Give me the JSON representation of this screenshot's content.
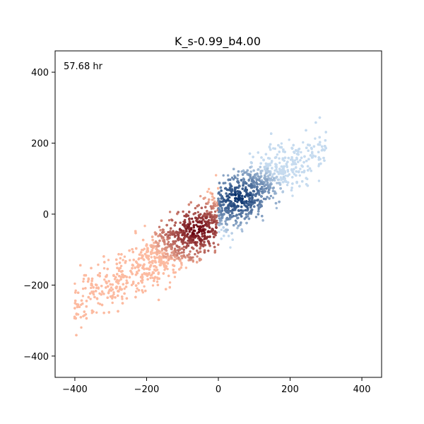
{
  "chart_data": {
    "type": "scatter",
    "title": "K_s-0.99_b4.00",
    "annotation": "57.68 hr",
    "xlabel": "",
    "ylabel": "",
    "xlim": [
      -455,
      455
    ],
    "ylim": [
      -460,
      460
    ],
    "xticks": [
      -400,
      -200,
      0,
      200,
      400
    ],
    "yticks": [
      -400,
      -200,
      0,
      200,
      400
    ],
    "xtick_labels": [
      "−400",
      "−200",
      "0",
      "200",
      "400"
    ],
    "ytick_labels": [
      "−400",
      "−200",
      "0",
      "200",
      "400"
    ],
    "grid": false,
    "legend": "none",
    "series": [
      {
        "x_range": [
          -405,
          0
        ],
        "colormap": "Reds",
        "dense_core": [
          -60,
          -45
        ],
        "trend_slope": 0.62,
        "trend_intercept": -10,
        "spread_y": 55,
        "color_light": "#fcbba1",
        "color_dark": "#67000d"
      },
      {
        "x_range": [
          0,
          300
        ],
        "colormap": "Blues",
        "dense_core": [
          55,
          45
        ],
        "trend_slope": 0.62,
        "trend_intercept": 10,
        "spread_y": 55,
        "color_light": "#c6dbef",
        "color_dark": "#08306b"
      }
    ]
  }
}
